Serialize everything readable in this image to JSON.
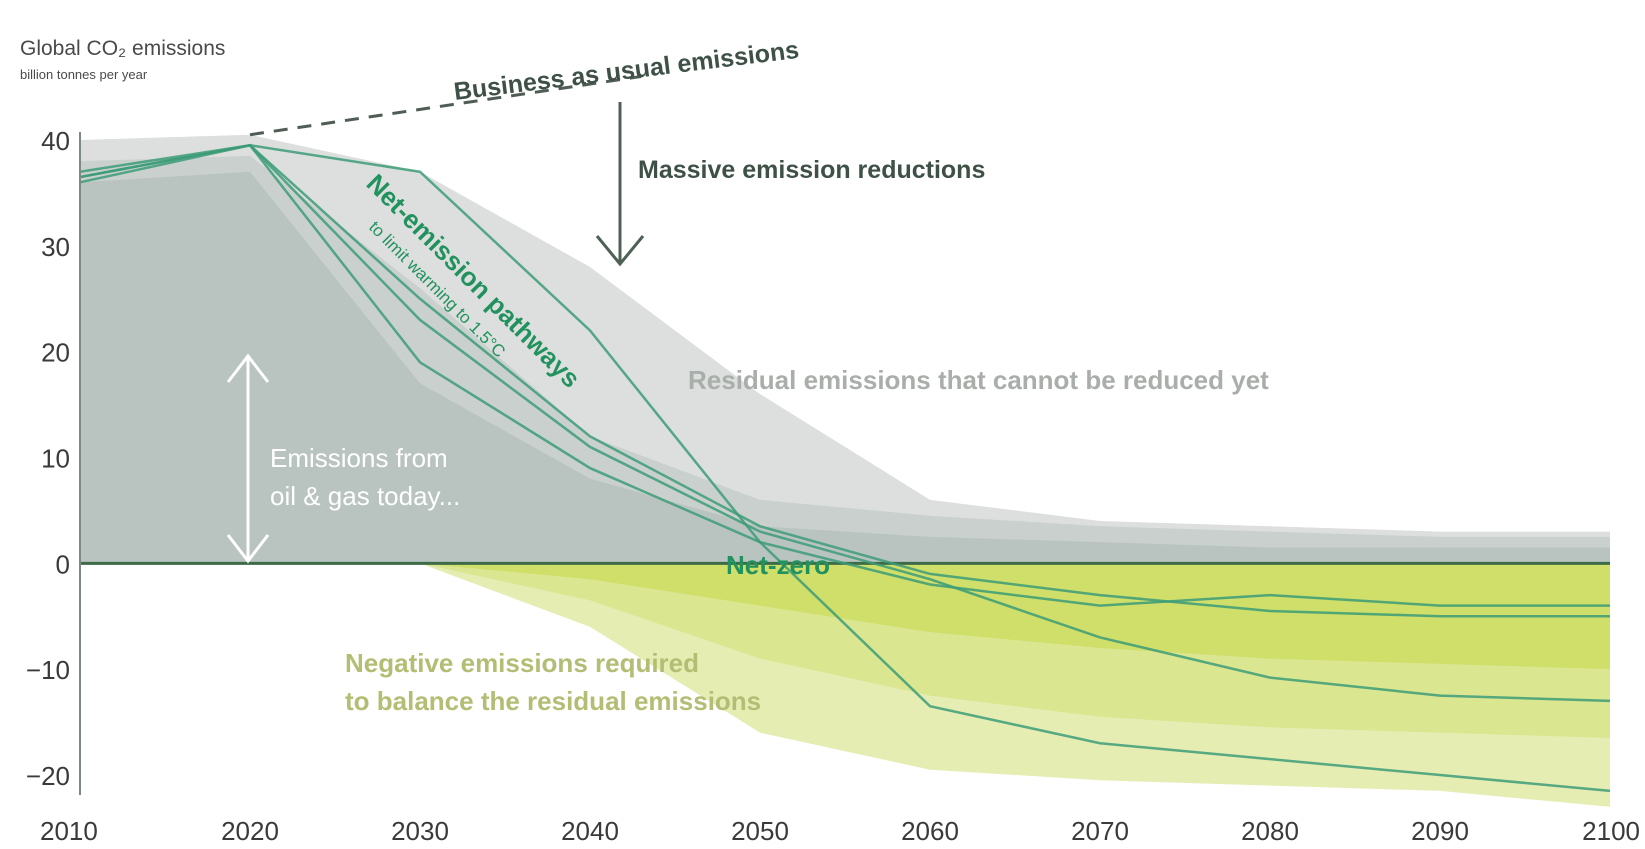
{
  "chart_data": {
    "type": "area",
    "ylabel": "Global CO₂ emissions",
    "yunit": "billion tonnes per year",
    "xlim": [
      2010,
      2100
    ],
    "ylim": [
      -20,
      40
    ],
    "xticks": [
      2010,
      2020,
      2030,
      2040,
      2050,
      2060,
      2070,
      2080,
      2090,
      2100
    ],
    "yticks": [
      40,
      30,
      20,
      10,
      0,
      -10,
      -20
    ],
    "ytick_labels": [
      "40",
      "30",
      "20",
      "10",
      "0",
      "−10",
      "−20"
    ],
    "grid": false,
    "colors": {
      "baseline_dark": "#b9c4c1",
      "residual_light": "#dcdfdd",
      "residual_mid": "#c9d0cd",
      "negative_light": "#e6edb3",
      "negative_mid": "#dbe690",
      "negative_dark": "#cfdf6a",
      "pathway_line": "#3c9c78",
      "zero_line": "#3d6b48",
      "arrow": "#4f6055"
    },
    "residual_bands": [
      {
        "x": [
          2010,
          2020,
          2030,
          2040,
          2050,
          2060,
          2070,
          2080,
          2090,
          2100
        ],
        "y": [
          40,
          40.5,
          37,
          28,
          16,
          6,
          4,
          3.5,
          3,
          3
        ]
      },
      {
        "x": [
          2010,
          2020,
          2030,
          2040,
          2050,
          2060,
          2070,
          2080,
          2090,
          2100
        ],
        "y": [
          38,
          38.5,
          26,
          12,
          6,
          4.5,
          3.5,
          3,
          2.5,
          2.5
        ]
      },
      {
        "x": [
          2010,
          2020,
          2030,
          2040,
          2050,
          2060,
          2070,
          2080,
          2090,
          2100
        ],
        "y": [
          36,
          37,
          17,
          8,
          3.5,
          2.5,
          2,
          1.5,
          1.5,
          1.5
        ]
      }
    ],
    "negative_bands": [
      {
        "x": [
          2030,
          2040,
          2050,
          2060,
          2070,
          2080,
          2090,
          2100
        ],
        "y": [
          0,
          -6,
          -16,
          -19.5,
          -20.5,
          -21,
          -21.5,
          -23
        ]
      },
      {
        "x": [
          2030,
          2040,
          2050,
          2060,
          2070,
          2080,
          2090,
          2100
        ],
        "y": [
          0,
          -3.5,
          -9,
          -12.5,
          -14.5,
          -15.5,
          -16,
          -16.5
        ]
      },
      {
        "x": [
          2030,
          2040,
          2050,
          2060,
          2070,
          2080,
          2090,
          2100
        ],
        "y": [
          0,
          -1.5,
          -4,
          -6.5,
          -8,
          -9,
          -9.5,
          -10
        ]
      }
    ],
    "pathways": [
      {
        "x": [
          2010,
          2020,
          2030,
          2040,
          2050,
          2060,
          2070,
          2080,
          2090,
          2100
        ],
        "y": [
          36,
          39.5,
          37,
          22,
          2,
          -13.5,
          -17,
          -18.5,
          -20,
          -21.5
        ]
      },
      {
        "x": [
          2010,
          2020,
          2030,
          2040,
          2050,
          2060,
          2070,
          2080,
          2090,
          2100
        ],
        "y": [
          36.5,
          39.5,
          23,
          11,
          3,
          -1.5,
          -7,
          -10.8,
          -12.5,
          -13
        ]
      },
      {
        "x": [
          2010,
          2020,
          2030,
          2040,
          2050,
          2060,
          2070,
          2080,
          2090,
          2100
        ],
        "y": [
          36.5,
          39.5,
          19,
          9,
          2,
          -2,
          -4,
          -3,
          -4,
          -4
        ]
      },
      {
        "x": [
          2010,
          2020,
          2030,
          2040,
          2050,
          2060,
          2070,
          2080,
          2090,
          2100
        ],
        "y": [
          37,
          39.5,
          25,
          12,
          3.5,
          -1,
          -3,
          -4.5,
          -5,
          -5
        ]
      }
    ],
    "business_as_usual": {
      "x": [
        2020,
        2043
      ],
      "y": [
        40.5,
        46
      ]
    },
    "annotations": {
      "business_as_usual": "Business as usual emissions",
      "massive_reductions": "Massive emission reductions",
      "net_pathways": "Net-emission pathways",
      "net_pathways_sub": "to limit warming to 1.5°C",
      "residual": "Residual emissions that cannot be reduced yet",
      "oil_gas_line1": "Emissions from",
      "oil_gas_line2": "oil & gas today...",
      "net_zero": "Net-zero",
      "negative_line1": "Negative emissions required",
      "negative_line2": "to balance the residual emissions"
    }
  }
}
